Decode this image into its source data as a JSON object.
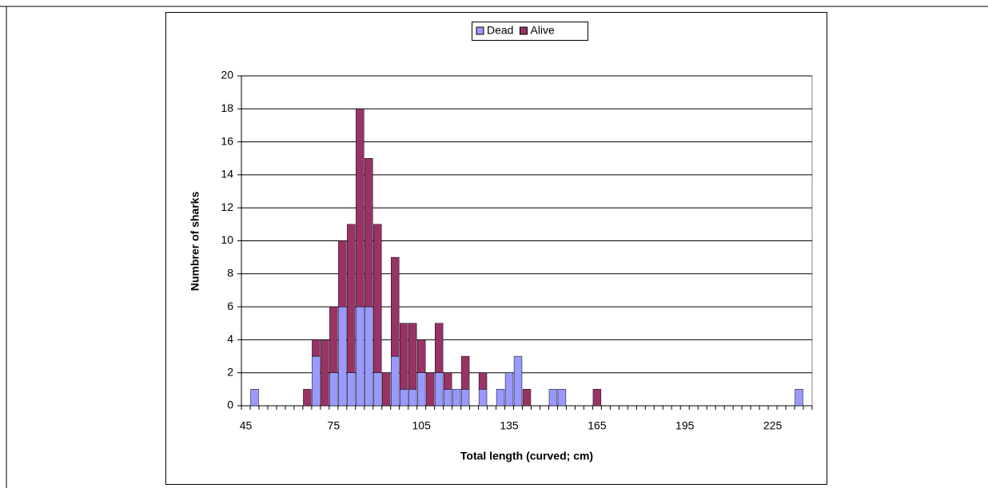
{
  "chart_data": {
    "type": "bar",
    "stacked": true,
    "xlabel": "Total length (curved; cm)",
    "ylabel": "Numbrer of sharks",
    "categories": [
      "45",
      null,
      null,
      null,
      null,
      null,
      null,
      null,
      null,
      null,
      "75",
      null,
      null,
      null,
      null,
      null,
      null,
      null,
      null,
      null,
      "105",
      null,
      null,
      null,
      null,
      null,
      null,
      null,
      null,
      null,
      "135",
      null,
      null,
      null,
      null,
      null,
      null,
      null,
      null,
      null,
      "165",
      null,
      null,
      null,
      null,
      null,
      null,
      null,
      null,
      null,
      "195",
      null,
      null,
      null,
      null,
      null,
      null,
      null,
      null,
      null,
      "225",
      null,
      null,
      null,
      null
    ],
    "series": [
      {
        "name": "Dead",
        "color": "#9999ff",
        "values": [
          0,
          1,
          0,
          0,
          0,
          0,
          0,
          0,
          3,
          0,
          2,
          6,
          2,
          6,
          6,
          2,
          0,
          3,
          1,
          1,
          2,
          0,
          2,
          1,
          1,
          1,
          0,
          1,
          0,
          1,
          2,
          3,
          0,
          0,
          0,
          1,
          1,
          0,
          0,
          0,
          0,
          0,
          0,
          0,
          0,
          0,
          0,
          0,
          0,
          0,
          0,
          0,
          0,
          0,
          0,
          0,
          0,
          0,
          0,
          0,
          0,
          0,
          0,
          1,
          0
        ]
      },
      {
        "name": "Alive",
        "color": "#993366",
        "values": [
          0,
          0,
          0,
          0,
          0,
          0,
          0,
          1,
          1,
          4,
          4,
          4,
          9,
          12,
          9,
          9,
          2,
          6,
          4,
          4,
          2,
          2,
          3,
          1,
          0,
          2,
          0,
          1,
          0,
          0,
          0,
          0,
          1,
          0,
          0,
          0,
          0,
          0,
          0,
          0,
          1,
          0,
          0,
          0,
          0,
          0,
          0,
          0,
          0,
          0,
          0,
          0,
          0,
          0,
          0,
          0,
          0,
          0,
          0,
          0,
          0,
          0,
          0,
          0,
          0
        ]
      }
    ],
    "ylim": [
      0,
      20
    ],
    "yticks": [
      0,
      2,
      4,
      6,
      8,
      10,
      12,
      14,
      16,
      18,
      20
    ],
    "grid": true,
    "legend": "top"
  }
}
